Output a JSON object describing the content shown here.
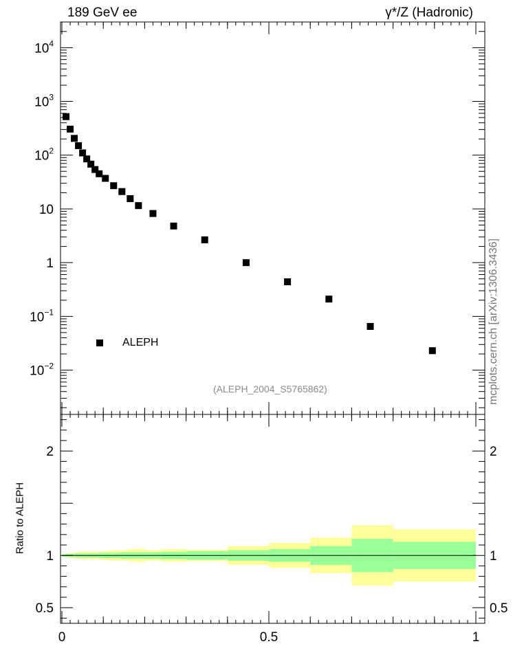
{
  "header": {
    "left": "189 GeV ee",
    "right": "γ*/Z (Hadronic)"
  },
  "side_label": "mcplots.cern.ch [arXiv:1306.3436]",
  "analysis_label": "(ALEPH_2004_S5765862)",
  "legend": {
    "label": "ALEPH"
  },
  "colors": {
    "data_marker": "#000000",
    "band_inner": "#99ff99",
    "band_outer": "#ffff99",
    "axis": "#000000"
  },
  "chart_data": [
    {
      "type": "scatter",
      "yscale": "log",
      "xlim": [
        0,
        1
      ],
      "ylim": [
        0.0015,
        30000
      ],
      "ytick_labels": [
        {
          "value": 0.01,
          "base": "10",
          "exp": "−2"
        },
        {
          "value": 0.1,
          "base": "10",
          "exp": "−1"
        },
        {
          "value": 1,
          "base": "1",
          "exp": ""
        },
        {
          "value": 10,
          "base": "10",
          "exp": ""
        },
        {
          "value": 100,
          "base": "10",
          "exp": "2"
        },
        {
          "value": 1000,
          "base": "10",
          "exp": "3"
        },
        {
          "value": 10000,
          "base": "10",
          "exp": "4"
        }
      ],
      "series": [
        {
          "name": "ALEPH",
          "x": [
            0.01,
            0.02,
            0.03,
            0.04,
            0.05,
            0.06,
            0.07,
            0.08,
            0.09,
            0.105,
            0.125,
            0.145,
            0.165,
            0.185,
            0.22,
            0.27,
            0.345,
            0.445,
            0.545,
            0.645,
            0.745,
            0.895
          ],
          "y": [
            520,
            305,
            205,
            150,
            110,
            85,
            68,
            54,
            45,
            37,
            27,
            21,
            15.5,
            11.5,
            8.2,
            4.8,
            2.65,
            1.0,
            0.44,
            0.21,
            0.065,
            0.023
          ]
        }
      ]
    },
    {
      "type": "area",
      "xlim": [
        0,
        1
      ],
      "ylim": [
        0.35,
        2.35
      ],
      "ylabel": "Ratio to ALEPH",
      "xtick_labels": [
        "0",
        "0.5",
        "1"
      ],
      "ytick_labels": [
        "0.5",
        "1",
        "2"
      ],
      "reference_line": 1,
      "bands": [
        {
          "x0": 0.0,
          "x1": 0.01,
          "inner": 0.01,
          "outer": 0.015
        },
        {
          "x0": 0.01,
          "x1": 0.02,
          "inner": 0.015,
          "outer": 0.02
        },
        {
          "x0": 0.02,
          "x1": 0.03,
          "inner": 0.015,
          "outer": 0.025
        },
        {
          "x0": 0.03,
          "x1": 0.04,
          "inner": 0.02,
          "outer": 0.03
        },
        {
          "x0": 0.04,
          "x1": 0.05,
          "inner": 0.02,
          "outer": 0.035
        },
        {
          "x0": 0.05,
          "x1": 0.06,
          "inner": 0.02,
          "outer": 0.04
        },
        {
          "x0": 0.06,
          "x1": 0.07,
          "inner": 0.02,
          "outer": 0.035
        },
        {
          "x0": 0.07,
          "x1": 0.08,
          "inner": 0.02,
          "outer": 0.04
        },
        {
          "x0": 0.08,
          "x1": 0.09,
          "inner": 0.02,
          "outer": 0.035
        },
        {
          "x0": 0.09,
          "x1": 0.1,
          "inner": 0.025,
          "outer": 0.04
        },
        {
          "x0": 0.1,
          "x1": 0.12,
          "inner": 0.025,
          "outer": 0.045
        },
        {
          "x0": 0.12,
          "x1": 0.14,
          "inner": 0.025,
          "outer": 0.05
        },
        {
          "x0": 0.14,
          "x1": 0.16,
          "inner": 0.03,
          "outer": 0.05
        },
        {
          "x0": 0.16,
          "x1": 0.18,
          "inner": 0.03,
          "outer": 0.06
        },
        {
          "x0": 0.18,
          "x1": 0.2,
          "inner": 0.03,
          "outer": 0.065
        },
        {
          "x0": 0.2,
          "x1": 0.24,
          "inner": 0.03,
          "outer": 0.05
        },
        {
          "x0": 0.24,
          "x1": 0.3,
          "inner": 0.035,
          "outer": 0.06
        },
        {
          "x0": 0.3,
          "x1": 0.4,
          "inner": 0.04,
          "outer": 0.055
        },
        {
          "x0": 0.4,
          "x1": 0.5,
          "inner": 0.05,
          "outer": 0.09
        },
        {
          "x0": 0.5,
          "x1": 0.6,
          "inner": 0.06,
          "outer": 0.12
        },
        {
          "x0": 0.6,
          "x1": 0.7,
          "inner": 0.09,
          "outer": 0.17
        },
        {
          "x0": 0.7,
          "x1": 0.8,
          "inner": 0.16,
          "outer": 0.29
        },
        {
          "x0": 0.8,
          "x1": 1.0,
          "inner": 0.13,
          "outer": 0.25
        }
      ]
    }
  ]
}
